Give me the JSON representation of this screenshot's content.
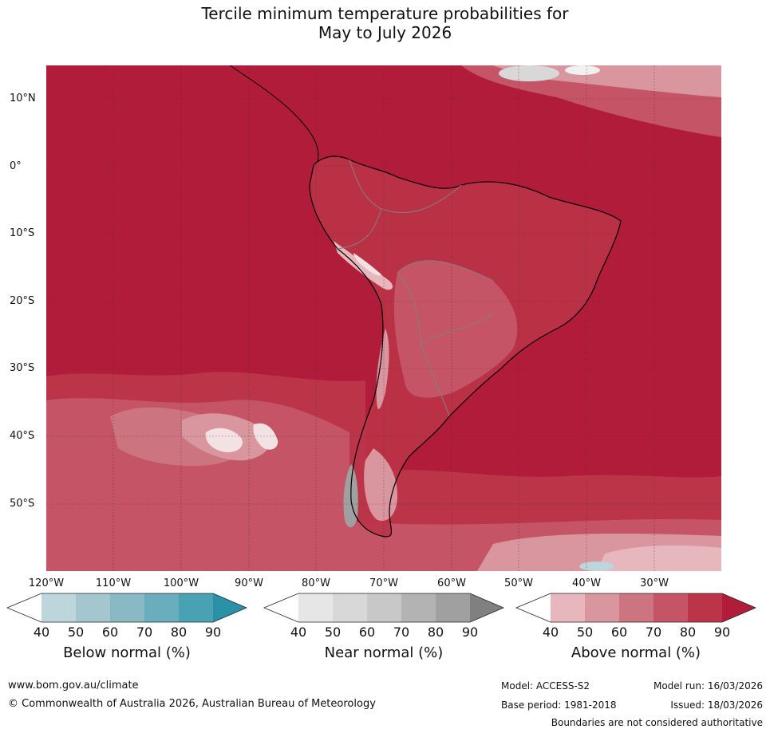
{
  "title_line1": "Tercile minimum temperature probabilities for",
  "title_line2": "May to July 2026",
  "lat_labels": [
    "10°N",
    "0°",
    "10°S",
    "20°S",
    "30°S",
    "40°S",
    "50°S"
  ],
  "lon_labels": [
    "120°W",
    "110°W",
    "100°W",
    "90°W",
    "80°W",
    "70°W",
    "60°W",
    "50°W",
    "40°W",
    "30°W"
  ],
  "colorbars": [
    {
      "title": "Below normal (%)",
      "ticks": [
        "40",
        "50",
        "60",
        "70",
        "80",
        "90"
      ],
      "colors": [
        "#ffffff",
        "#bcd6dc",
        "#a4c7cf",
        "#88b9c4",
        "#6aaebd",
        "#49a2b4",
        "#2a91a7"
      ]
    },
    {
      "title": "Near normal (%)",
      "ticks": [
        "40",
        "50",
        "60",
        "70",
        "80",
        "90"
      ],
      "colors": [
        "#ffffff",
        "#e6e6e6",
        "#d8d8d8",
        "#c8c8c8",
        "#b3b3b3",
        "#a0a0a0",
        "#808080"
      ]
    },
    {
      "title": "Above normal (%)",
      "ticks": [
        "40",
        "50",
        "60",
        "70",
        "80",
        "90"
      ],
      "colors": [
        "#ffffff",
        "#e6b7bd",
        "#d9969f",
        "#cc7580",
        "#c45466",
        "#bb3448",
        "#b01c3a"
      ]
    }
  ],
  "footer": {
    "website": "www.bom.gov.au/climate",
    "copyright": "© Commonwealth of Australia 2026, Australian Bureau of Meteorology",
    "model": "Model: ACCESS-S2",
    "model_run": "Model run: 16/03/2026",
    "base_period": "Base period: 1981-2018",
    "issued": "Issued: 18/03/2026",
    "disclaimer": "Boundaries are not considered authoritative"
  }
}
